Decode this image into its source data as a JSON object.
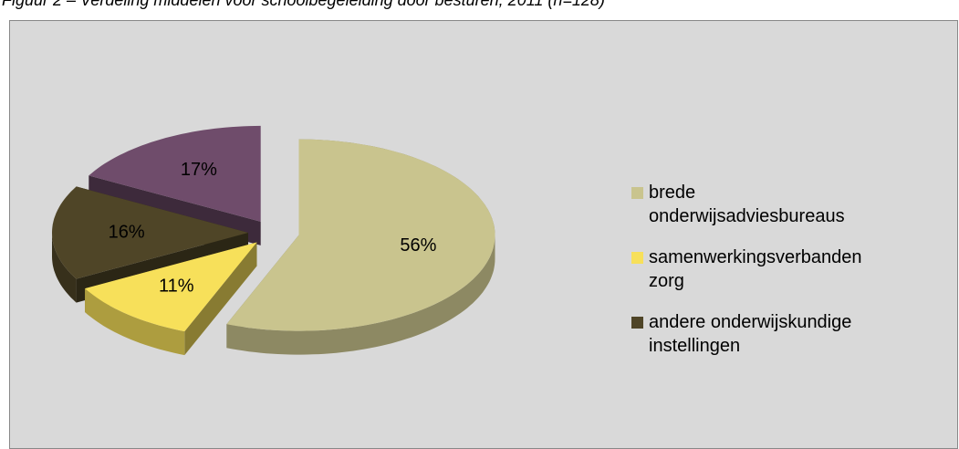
{
  "chart_data": {
    "type": "pie",
    "title": "Figuur 2 – Verdeling middelen voor schoolbegeleiding door besturen, 2011 (n=128)",
    "categories": [
      "brede onderwijsadviesbureaus",
      "samenwerkingsverbanden zorg",
      "andere onderwijskundige instellingen",
      null
    ],
    "values": [
      56,
      11,
      16,
      17
    ],
    "value_labels": [
      "56%",
      "11%",
      "16%",
      "17%"
    ],
    "colors": [
      "#c9c48e",
      "#f7e05a",
      "#4f4527",
      "#6f4c6b"
    ],
    "legend": "right"
  }
}
